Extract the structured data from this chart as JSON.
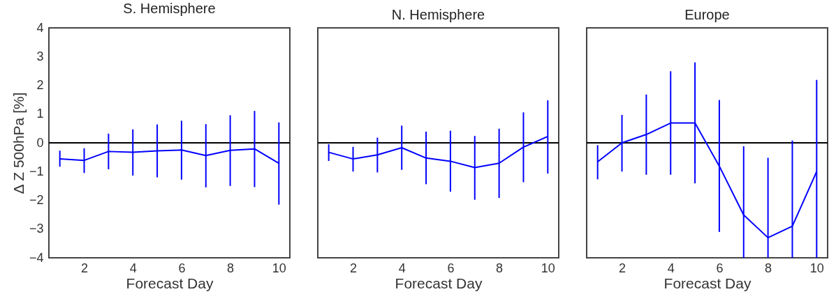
{
  "chart_data": [
    {
      "type": "line",
      "title": "S. Hemisphere",
      "xlabel": "Forecast Day",
      "ylabel": "Δ Z 500hPa [%]",
      "x": [
        1,
        2,
        3,
        4,
        5,
        6,
        7,
        8,
        9,
        10
      ],
      "xlim": [
        0.55,
        10.45
      ],
      "xticks": [
        2,
        4,
        6,
        8,
        10
      ],
      "ylim": [
        -4,
        4
      ],
      "yticks": [
        -4,
        -3,
        -2,
        -1,
        0,
        1,
        2,
        3,
        4
      ],
      "series": [
        {
          "color": "#0000ff",
          "values": [
            -0.56,
            -0.61,
            -0.3,
            -0.33,
            -0.28,
            -0.25,
            -0.44,
            -0.26,
            -0.21,
            -0.71
          ],
          "errors": [
            [
              -0.83,
              -0.27
            ],
            [
              -1.05,
              -0.19
            ],
            [
              -0.92,
              0.32
            ],
            [
              -1.14,
              0.47
            ],
            [
              -1.2,
              0.64
            ],
            [
              -1.28,
              0.77
            ],
            [
              -1.55,
              0.65
            ],
            [
              -1.5,
              0.96
            ],
            [
              -1.54,
              1.11
            ],
            [
              -2.15,
              0.71
            ]
          ]
        }
      ],
      "ref_lines": [
        {
          "axis": "y",
          "value": 0,
          "color": "#000000"
        }
      ]
    },
    {
      "type": "line",
      "title": "N. Hemisphere",
      "xlabel": "Forecast Day",
      "x": [
        1,
        2,
        3,
        4,
        5,
        6,
        7,
        8,
        9,
        10
      ],
      "xlim": [
        0.55,
        10.45
      ],
      "xticks": [
        2,
        4,
        6,
        8,
        10
      ],
      "ylim": [
        -4,
        4
      ],
      "yticks": [
        -4,
        -3,
        -2,
        -1,
        0,
        1,
        2,
        3,
        4
      ],
      "tick_labels": "x",
      "series": [
        {
          "color": "#0000ff",
          "values": [
            -0.33,
            -0.56,
            -0.42,
            -0.17,
            -0.53,
            -0.64,
            -0.86,
            -0.71,
            -0.15,
            0.22
          ],
          "errors": [
            [
              -0.63,
              -0.05
            ],
            [
              -1.0,
              -0.14
            ],
            [
              -1.03,
              0.18
            ],
            [
              -0.94,
              0.6
            ],
            [
              -1.44,
              0.39
            ],
            [
              -1.7,
              0.42
            ],
            [
              -1.98,
              0.24
            ],
            [
              -1.92,
              0.49
            ],
            [
              -1.37,
              1.06
            ],
            [
              -1.07,
              1.48
            ]
          ]
        }
      ],
      "ref_lines": [
        {
          "axis": "y",
          "value": 0,
          "color": "#000000"
        }
      ]
    },
    {
      "type": "line",
      "title": "Europe",
      "xlabel": "Forecast Day",
      "x": [
        1,
        2,
        3,
        4,
        5,
        6,
        7,
        8,
        9,
        10
      ],
      "xlim": [
        0.55,
        10.45
      ],
      "xticks": [
        2,
        4,
        6,
        8,
        10
      ],
      "ylim": [
        -4,
        4
      ],
      "yticks": [
        -4,
        -3,
        -2,
        -1,
        0,
        1,
        2,
        3,
        4
      ],
      "tick_labels": "x",
      "series": [
        {
          "color": "#0000ff",
          "values": [
            -0.66,
            0,
            0.29,
            0.69,
            0.69,
            -0.81,
            -2.51,
            -3.3,
            -2.9,
            -1.0
          ],
          "errors": [
            [
              -1.27,
              -0.08
            ],
            [
              -1.0,
              0.97
            ],
            [
              -1.11,
              1.68
            ],
            [
              -1.11,
              2.49
            ],
            [
              -1.41,
              2.8
            ],
            [
              -3.1,
              1.49
            ],
            [
              -4,
              -0.12
            ],
            [
              -4,
              -0.52
            ],
            [
              -4,
              0.08
            ],
            [
              -4,
              2.19
            ]
          ]
        }
      ],
      "ref_lines": [
        {
          "axis": "y",
          "value": 0,
          "color": "#000000"
        }
      ]
    }
  ]
}
